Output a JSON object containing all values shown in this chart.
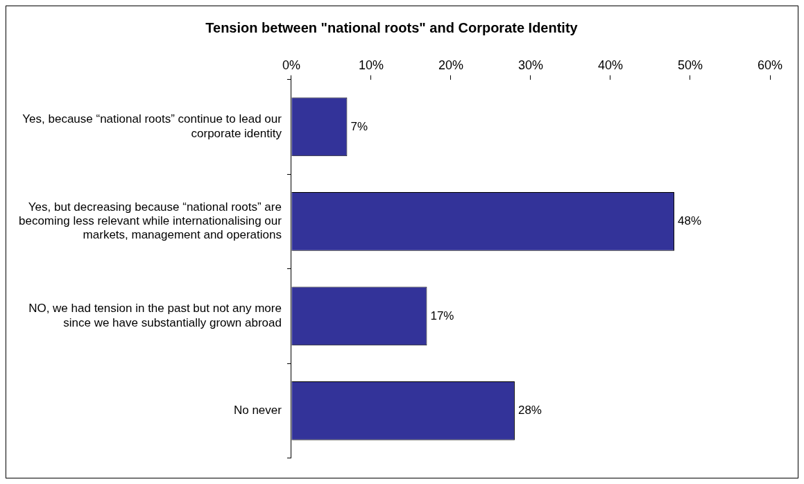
{
  "chart_data": {
    "type": "bar",
    "orientation": "horizontal",
    "title": "Tension between \"national roots\" and Corporate Identity",
    "categories": [
      "Yes, because “national roots” continue to lead our corporate identity",
      "Yes, but decreasing because “national roots” are becoming less relevant while internationalising our markets, management and operations",
      "NO, we had tension in the past but not any more since we have substantially grown abroad",
      "No never"
    ],
    "values": [
      7,
      48,
      17,
      28
    ],
    "value_labels": [
      "7%",
      "48%",
      "17%",
      "28%"
    ],
    "color": "#333399",
    "xlim": [
      0,
      60
    ],
    "xticks": [
      {
        "value": 0,
        "label": "0%"
      },
      {
        "value": 10,
        "label": "10%"
      },
      {
        "value": 20,
        "label": "20%"
      },
      {
        "value": 30,
        "label": "30%"
      },
      {
        "value": 40,
        "label": "40%"
      },
      {
        "value": 50,
        "label": "50%"
      },
      {
        "value": 60,
        "label": "60%"
      }
    ],
    "grid": false,
    "legend": false
  }
}
